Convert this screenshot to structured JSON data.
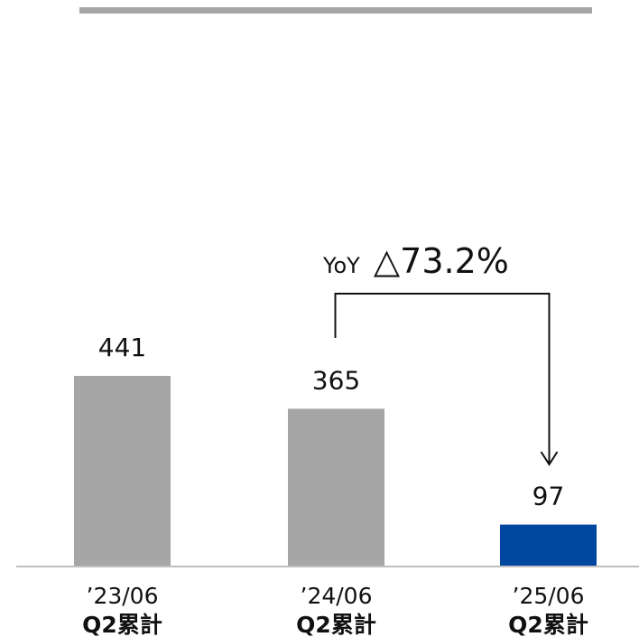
{
  "chart_data": {
    "type": "bar",
    "categories": [
      {
        "line1": "’23/06",
        "line2": "Q2累計"
      },
      {
        "line1": "’24/06",
        "line2": "Q2累計"
      },
      {
        "line1": "’25/06",
        "line2": "Q2累計"
      }
    ],
    "values": [
      441,
      365,
      97
    ],
    "value_labels": [
      "441",
      "365",
      "97"
    ],
    "bar_colors": [
      "#a6a6a6",
      "#a6a6a6",
      "#0047a0"
    ],
    "annotation": {
      "prefix": "YoY",
      "value": "△73.2%",
      "from_category_index": 1,
      "to_category_index": 2
    },
    "ylim": [
      0,
      441
    ],
    "grid": false,
    "legend": "none",
    "xlabel": "",
    "ylabel": ""
  },
  "colors": {
    "bar_default": "#a6a6a6",
    "bar_highlight": "#0047a0",
    "axis": "#bfbfbf",
    "text": "#111111",
    "arrow": "#111111"
  }
}
